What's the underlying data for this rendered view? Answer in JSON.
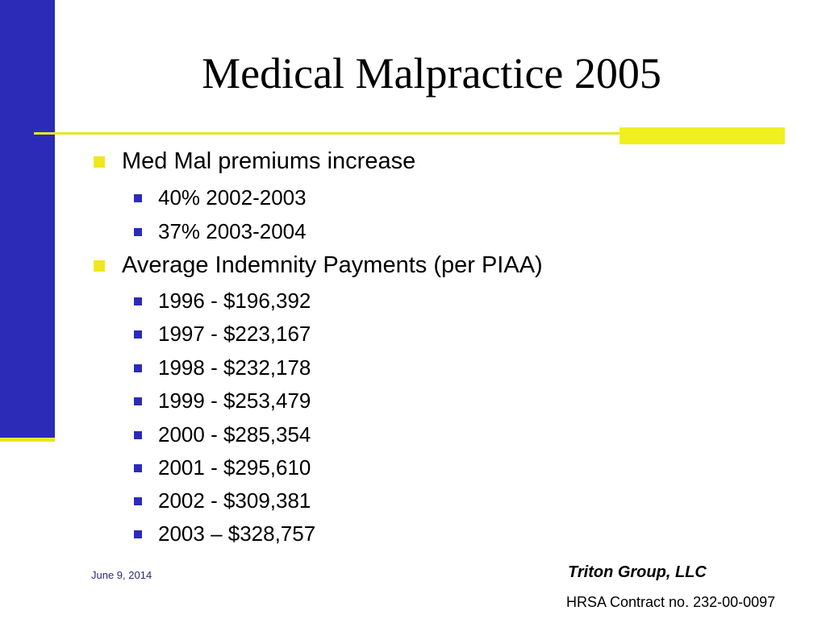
{
  "slide": {
    "title": "Medical Malpractice 2005",
    "accent_colors": {
      "bar": "#2b2bb8",
      "yellow": "#f0e81a"
    },
    "bullets": [
      {
        "text": "Med Mal premiums increase",
        "level": 1
      },
      {
        "text": "40% 2002-2003",
        "level": 2
      },
      {
        "text": "37% 2003-2004",
        "level": 2
      },
      {
        "text": "Average Indemnity Payments (per PIAA)",
        "level": 1
      },
      {
        "text": "1996 - $196,392",
        "level": 2
      },
      {
        "text": "1997 - $223,167",
        "level": 2
      },
      {
        "text": "1998 - $232,178",
        "level": 2
      },
      {
        "text": "1999 - $253,479",
        "level": 2
      },
      {
        "text": "2000 - $285,354",
        "level": 2
      },
      {
        "text": "2001 - $295,610",
        "level": 2
      },
      {
        "text": "2002 - $309,381",
        "level": 2
      },
      {
        "text": "2003 – $328,757",
        "level": 2
      }
    ]
  },
  "footer": {
    "date": "June 9, 2014",
    "company": "Triton Group, LLC",
    "contract": "HRSA Contract no. 232-00-0097"
  }
}
